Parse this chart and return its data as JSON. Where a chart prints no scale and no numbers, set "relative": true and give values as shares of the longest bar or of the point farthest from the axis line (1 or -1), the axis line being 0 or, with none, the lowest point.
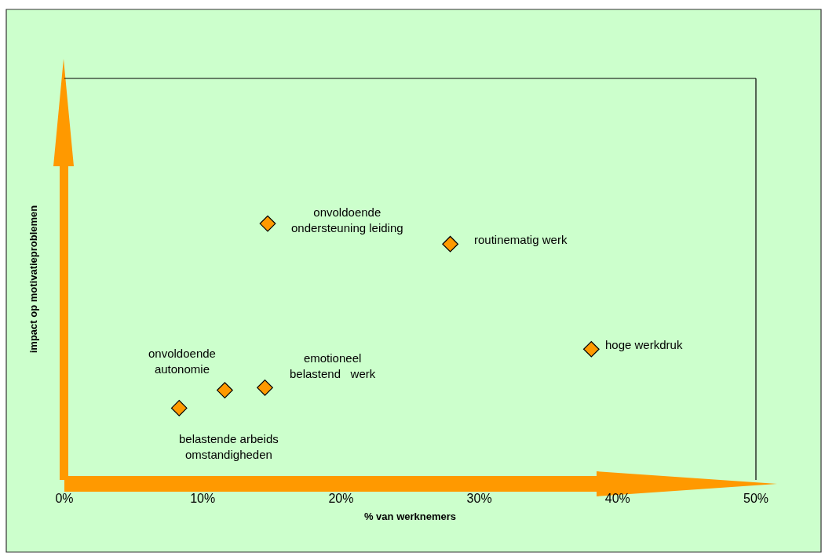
{
  "chart_data": {
    "type": "scatter",
    "relative": true,
    "xlabel": "% van werknemers",
    "ylabel": "impact op motivatieproblemen",
    "x": [
      14.7,
      27.9,
      38.1,
      14.5,
      11.6,
      8.3
    ],
    "series": [
      {
        "color": "#ff9900",
        "values": [
          1,
          0.92,
          0.51,
          0.36,
          0.35,
          0.28
        ]
      }
    ],
    "marker": "diamond",
    "xlim": [
      0,
      50
    ],
    "xticks": [
      {
        "value": 0,
        "label": "0%"
      },
      {
        "value": 10,
        "label": "10%"
      },
      {
        "value": 20,
        "label": "20%"
      },
      {
        "value": 30,
        "label": "30%"
      },
      {
        "value": 40,
        "label": "40%"
      },
      {
        "value": 50,
        "label": "50%"
      }
    ],
    "grid": false,
    "annotations": [
      {
        "text": "onvoldoende\nondersteuning leiding",
        "x": 14.7,
        "y": 1
      },
      {
        "text": "routinematig werk",
        "x": 27.9,
        "y": 0.92
      },
      {
        "text": "hoge werkdruk",
        "x": 38.1,
        "y": 0.51
      },
      {
        "text": "emotioneel\nbelastend   werk",
        "x": 14.5,
        "y": 0.36
      },
      {
        "text": "onvoldoende\nautonomie",
        "x": 11.6,
        "y": 0.35
      },
      {
        "text": "belastende arbeids\nomstandigheden",
        "x": 8.3,
        "y": 0.28
      }
    ]
  }
}
